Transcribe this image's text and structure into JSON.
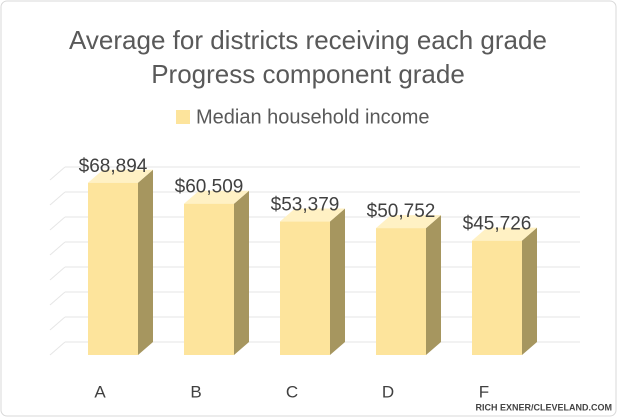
{
  "chart_data": {
    "type": "bar3d",
    "title": "Average for districts receiving each grade",
    "subtitle": "Progress component grade",
    "categories": [
      "A",
      "B",
      "C",
      "D",
      "F"
    ],
    "series": [
      {
        "name": "Median household income",
        "color": "#fde49c",
        "values": [
          68894,
          60509,
          53379,
          50752,
          45726
        ],
        "value_labels": [
          "$68,894",
          "$60,509",
          "$53,379",
          "$50,752",
          "$45,726"
        ]
      }
    ],
    "ylim": [
      0,
      70000
    ],
    "yticks": [
      0,
      10000,
      20000,
      30000,
      40000,
      50000,
      60000,
      70000
    ],
    "grid": true,
    "legend": "top",
    "credit": "RICH EXNER/CLEVELAND.COM"
  }
}
